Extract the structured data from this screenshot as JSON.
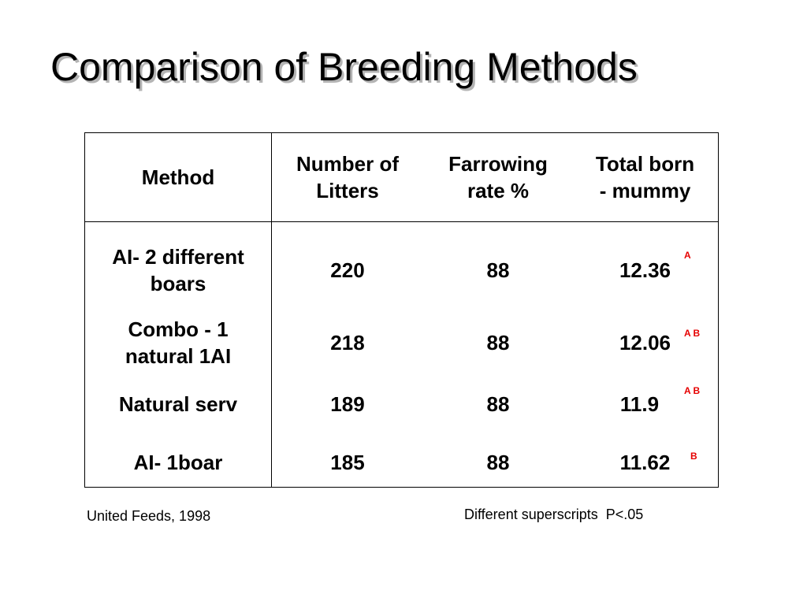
{
  "title": "Comparison of Breeding Methods",
  "table": {
    "headers": {
      "method": "Method",
      "litters": "Number of\nLitters",
      "farrowing": "Farrowing\nrate %",
      "total_born": "Total born\n- mummy"
    },
    "rows": [
      {
        "method": "AI- 2 different\nboars",
        "litters": "220",
        "farrowing": "88",
        "total_born": "12.36",
        "superscript": "A"
      },
      {
        "method": "Combo - 1\nnatural 1AI",
        "litters": "218",
        "farrowing": "88",
        "total_born": "12.06",
        "superscript": "A B"
      },
      {
        "method": "Natural serv",
        "litters": "189",
        "farrowing": "88",
        "total_born": "11.9",
        "superscript": "A B"
      },
      {
        "method": "AI- 1boar",
        "litters": "185",
        "farrowing": "88",
        "total_born": "11.62",
        "superscript": "B"
      }
    ]
  },
  "source_note": "United Feeds, 1998",
  "significance_note": "Different superscripts  P<.05",
  "colors": {
    "superscript": "#e60000",
    "title_shadow": "#b4b4b4"
  }
}
